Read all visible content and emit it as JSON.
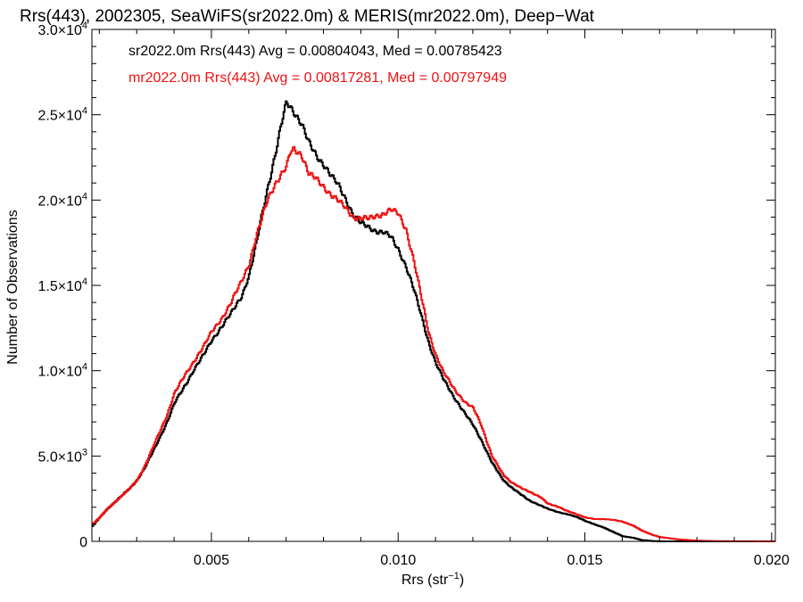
{
  "chart_data": {
    "type": "line",
    "step": true,
    "title": "Rrs(443), 2002305, SeaWiFS(sr2022.0m) & MERIS(mr2022.0m), Deep−Wat",
    "xlabel_main": "Rrs (str",
    "xlabel_sup": "−1",
    "xlabel_end": ")",
    "ylabel": "Number of Observations",
    "xlim": [
      0.0018,
      0.0201
    ],
    "ylim": [
      0,
      30000
    ],
    "grid": false,
    "x_ticks": [
      {
        "value": 0.005,
        "label": "0.005"
      },
      {
        "value": 0.01,
        "label": "0.010"
      },
      {
        "value": 0.015,
        "label": "0.015"
      },
      {
        "value": 0.02,
        "label": "0.020"
      }
    ],
    "y_ticks": [
      {
        "value": 0,
        "mant": "0",
        "exp": ""
      },
      {
        "value": 5000,
        "mant": "5.0×10",
        "exp": "3"
      },
      {
        "value": 10000,
        "mant": "1.0×10",
        "exp": "4"
      },
      {
        "value": 15000,
        "mant": "1.5×10",
        "exp": "4"
      },
      {
        "value": 20000,
        "mant": "2.0×10",
        "exp": "4"
      },
      {
        "value": 25000,
        "mant": "2.5×10",
        "exp": "4"
      },
      {
        "value": 30000,
        "mant": "3.0×10",
        "exp": "4"
      }
    ],
    "legend": [
      {
        "text": "sr2022.0m Rrs(443) Avg = 0.00804043, Med = 0.00785423",
        "color": "#000000"
      },
      {
        "text": "mr2022.0m Rrs(443) Avg = 0.00817281, Med = 0.00797949",
        "color": "#ee1111"
      }
    ],
    "legend_placement": "top-left",
    "series": [
      {
        "color": "#000000",
        "points": [
          [
            0.0018,
            900
          ],
          [
            0.002,
            1400
          ],
          [
            0.0022,
            1900
          ],
          [
            0.0025,
            2500
          ],
          [
            0.0028,
            3100
          ],
          [
            0.003,
            3600
          ],
          [
            0.0032,
            4300
          ],
          [
            0.0035,
            5600
          ],
          [
            0.0038,
            7000
          ],
          [
            0.004,
            8100
          ],
          [
            0.0043,
            9200
          ],
          [
            0.0045,
            10000
          ],
          [
            0.0048,
            11000
          ],
          [
            0.005,
            11800
          ],
          [
            0.0053,
            12700
          ],
          [
            0.0055,
            13300
          ],
          [
            0.0058,
            14400
          ],
          [
            0.006,
            15600
          ],
          [
            0.0062,
            17500
          ],
          [
            0.0063,
            18700
          ],
          [
            0.0065,
            20800
          ],
          [
            0.0067,
            22700
          ],
          [
            0.0069,
            24800
          ],
          [
            0.007,
            25700
          ],
          [
            0.0072,
            25200
          ],
          [
            0.0074,
            24500
          ],
          [
            0.0076,
            23300
          ],
          [
            0.0078,
            22600
          ],
          [
            0.008,
            22100
          ],
          [
            0.0082,
            21400
          ],
          [
            0.0084,
            20800
          ],
          [
            0.0086,
            20000
          ],
          [
            0.0088,
            19100
          ],
          [
            0.009,
            18600
          ],
          [
            0.0092,
            18400
          ],
          [
            0.0094,
            18200
          ],
          [
            0.0096,
            18100
          ],
          [
            0.0098,
            17800
          ],
          [
            0.01,
            17100
          ],
          [
            0.0102,
            16100
          ],
          [
            0.0104,
            14800
          ],
          [
            0.0106,
            13300
          ],
          [
            0.0108,
            11700
          ],
          [
            0.011,
            10400
          ],
          [
            0.0112,
            9500
          ],
          [
            0.0115,
            8400
          ],
          [
            0.0118,
            7400
          ],
          [
            0.012,
            6800
          ],
          [
            0.0122,
            6000
          ],
          [
            0.0125,
            4600
          ],
          [
            0.0128,
            3600
          ],
          [
            0.013,
            3200
          ],
          [
            0.0133,
            2700
          ],
          [
            0.0135,
            2400
          ],
          [
            0.0138,
            2100
          ],
          [
            0.014,
            1900
          ],
          [
            0.0143,
            1700
          ],
          [
            0.0145,
            1600
          ],
          [
            0.0148,
            1400
          ],
          [
            0.015,
            1200
          ],
          [
            0.0153,
            950
          ],
          [
            0.0155,
            800
          ],
          [
            0.0158,
            500
          ],
          [
            0.016,
            300
          ],
          [
            0.0163,
            200
          ],
          [
            0.0165,
            80
          ],
          [
            0.0168,
            20
          ],
          [
            0.017,
            0
          ],
          [
            0.0201,
            0
          ]
        ]
      },
      {
        "color": "#ee1111",
        "points": [
          [
            0.0018,
            1000
          ],
          [
            0.002,
            1400
          ],
          [
            0.0022,
            1900
          ],
          [
            0.0025,
            2500
          ],
          [
            0.0028,
            3100
          ],
          [
            0.003,
            3600
          ],
          [
            0.0032,
            4400
          ],
          [
            0.0035,
            5900
          ],
          [
            0.0038,
            7400
          ],
          [
            0.004,
            8700
          ],
          [
            0.0043,
            9800
          ],
          [
            0.0045,
            10500
          ],
          [
            0.0048,
            11500
          ],
          [
            0.005,
            12300
          ],
          [
            0.0053,
            13200
          ],
          [
            0.0055,
            13900
          ],
          [
            0.0058,
            15300
          ],
          [
            0.006,
            16300
          ],
          [
            0.0062,
            17900
          ],
          [
            0.0063,
            18600
          ],
          [
            0.0065,
            20100
          ],
          [
            0.0067,
            21000
          ],
          [
            0.0069,
            21600
          ],
          [
            0.007,
            21900
          ],
          [
            0.0071,
            22800
          ],
          [
            0.0072,
            23000
          ],
          [
            0.0074,
            22700
          ],
          [
            0.0076,
            21500
          ],
          [
            0.0078,
            21200
          ],
          [
            0.008,
            20800
          ],
          [
            0.0082,
            20300
          ],
          [
            0.0084,
            19900
          ],
          [
            0.0086,
            19500
          ],
          [
            0.0088,
            19000
          ],
          [
            0.009,
            18900
          ],
          [
            0.0092,
            18900
          ],
          [
            0.0094,
            19100
          ],
          [
            0.0096,
            19200
          ],
          [
            0.0098,
            19400
          ],
          [
            0.01,
            19200
          ],
          [
            0.0102,
            18300
          ],
          [
            0.0104,
            16500
          ],
          [
            0.0106,
            14400
          ],
          [
            0.0108,
            12300
          ],
          [
            0.011,
            10900
          ],
          [
            0.0112,
            9900
          ],
          [
            0.0115,
            8900
          ],
          [
            0.0118,
            8100
          ],
          [
            0.012,
            7800
          ],
          [
            0.0122,
            6900
          ],
          [
            0.0125,
            5000
          ],
          [
            0.0128,
            3900
          ],
          [
            0.013,
            3500
          ],
          [
            0.0133,
            3100
          ],
          [
            0.0135,
            2900
          ],
          [
            0.0138,
            2600
          ],
          [
            0.014,
            2200
          ],
          [
            0.0143,
            2000
          ],
          [
            0.0145,
            1800
          ],
          [
            0.0148,
            1550
          ],
          [
            0.015,
            1400
          ],
          [
            0.0153,
            1300
          ],
          [
            0.0155,
            1300
          ],
          [
            0.0158,
            1250
          ],
          [
            0.016,
            1150
          ],
          [
            0.0163,
            900
          ],
          [
            0.0165,
            650
          ],
          [
            0.0168,
            380
          ],
          [
            0.017,
            250
          ],
          [
            0.0173,
            170
          ],
          [
            0.0175,
            110
          ],
          [
            0.0178,
            70
          ],
          [
            0.018,
            40
          ],
          [
            0.0185,
            15
          ],
          [
            0.019,
            5
          ],
          [
            0.0201,
            0
          ]
        ]
      }
    ]
  }
}
